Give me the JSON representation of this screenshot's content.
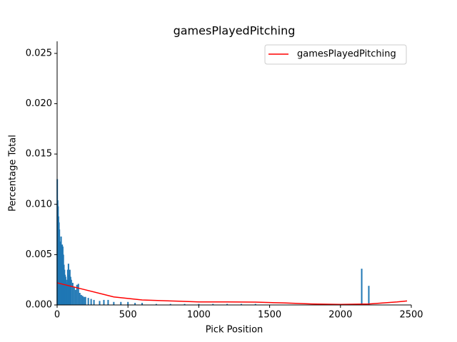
{
  "chart_data": {
    "type": "bar",
    "title": "gamesPlayedPitching",
    "x_label": "Pick Position",
    "y_label": "Percentage Total",
    "color": "#1f77b4",
    "x": [
      1,
      4,
      7,
      10,
      13,
      16,
      20,
      24,
      28,
      32,
      36,
      40,
      44,
      48,
      52,
      56,
      60,
      65,
      70,
      75,
      80,
      85,
      90,
      95,
      100,
      110,
      120,
      130,
      140,
      150,
      160,
      170,
      180,
      190,
      200,
      220,
      240,
      260,
      300,
      330,
      360,
      400,
      450,
      500,
      550,
      600,
      700,
      800,
      900,
      1000,
      1100,
      1200,
      1300,
      1400,
      2150,
      2200
    ],
    "values": [
      0.0125,
      0.0104,
      0.0098,
      0.0088,
      0.0082,
      0.0075,
      0.0063,
      0.0058,
      0.0068,
      0.0053,
      0.006,
      0.0058,
      0.005,
      0.004,
      0.0035,
      0.003,
      0.0028,
      0.0025,
      0.0022,
      0.0035,
      0.0041,
      0.003,
      0.0035,
      0.0028,
      0.0025,
      0.0022,
      0.0018,
      0.0015,
      0.002,
      0.0021,
      0.0012,
      0.001,
      0.0009,
      0.0008,
      0.0008,
      0.0007,
      0.0006,
      0.0005,
      0.0004,
      0.0005,
      0.0005,
      0.0003,
      0.0003,
      0.0003,
      0.0002,
      0.0002,
      0.0001,
      0.0001,
      0.0001,
      0.0001,
      0.0001,
      0.0001,
      0.0001,
      0.0001,
      0.0036,
      0.0019
    ],
    "line": {
      "name": "gamesPlayedPitching",
      "color": "#ff0000",
      "x": [
        0,
        200,
        400,
        600,
        800,
        1000,
        1200,
        1400,
        1600,
        1800,
        2000,
        2200,
        2400,
        2470
      ],
      "values": [
        0.0022,
        0.0015,
        0.0008,
        0.0005,
        0.0004,
        0.0003,
        0.0003,
        0.00028,
        0.0002,
        0.0001,
        5e-05,
        0.0001,
        0.0003,
        0.0004
      ]
    },
    "xlim": [
      0,
      2500
    ],
    "xticks": [
      0,
      500,
      1000,
      1500,
      2000,
      2500
    ],
    "ylim": [
      0,
      0.0262
    ],
    "yticks": [
      {
        "value": 0,
        "label": "0.000"
      },
      {
        "value": 0.005,
        "label": "0.005"
      },
      {
        "value": 0.01,
        "label": "0.010"
      },
      {
        "value": 0.015,
        "label": "0.015"
      },
      {
        "value": 0.02,
        "label": "0.020"
      },
      {
        "value": 0.025,
        "label": "0.025"
      }
    ],
    "legend": "upper right"
  }
}
